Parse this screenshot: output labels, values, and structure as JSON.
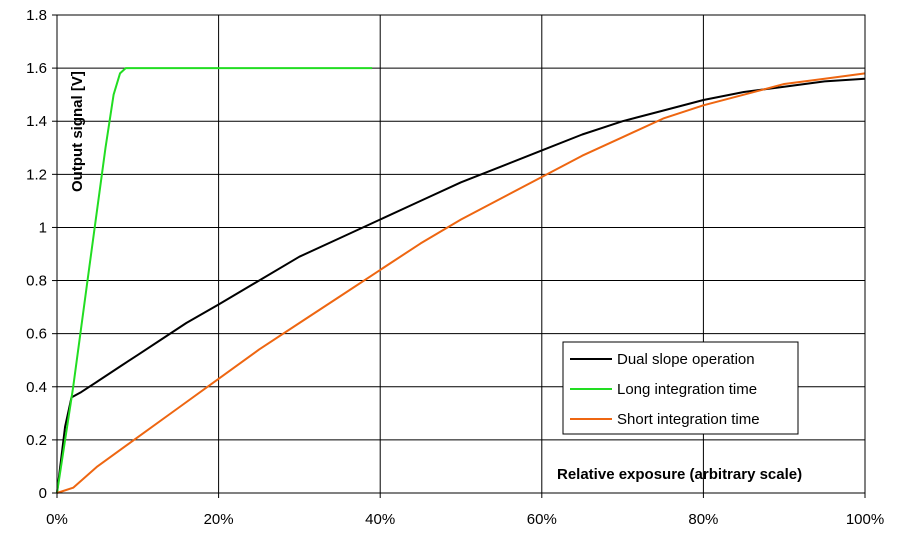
{
  "chart_data": {
    "type": "line",
    "title": "",
    "xlabel": "Relative exposure (arbitrary scale)",
    "ylabel": "Output  signal [V]",
    "xlim": [
      0,
      100
    ],
    "ylim": [
      0,
      1.8
    ],
    "x_ticks": [
      "0%",
      "20%",
      "40%",
      "60%",
      "80%",
      "100%"
    ],
    "y_ticks": [
      "0",
      "0.2",
      "0.4",
      "0.6",
      "0.8",
      "1",
      "1.2",
      "1.4",
      "1.6",
      "1.8"
    ],
    "grid": true,
    "legend_position": "lower-right",
    "series": [
      {
        "name": "Dual slope operation",
        "color": "#000000",
        "points": [
          [
            0,
            0
          ],
          [
            1,
            0.25
          ],
          [
            1.8,
            0.36
          ],
          [
            3,
            0.38
          ],
          [
            5,
            0.42
          ],
          [
            8,
            0.48
          ],
          [
            10,
            0.52
          ],
          [
            13,
            0.58
          ],
          [
            16,
            0.64
          ],
          [
            20,
            0.71
          ],
          [
            25,
            0.8
          ],
          [
            30,
            0.89
          ],
          [
            35,
            0.96
          ],
          [
            40,
            1.03
          ],
          [
            45,
            1.1
          ],
          [
            50,
            1.17
          ],
          [
            55,
            1.23
          ],
          [
            60,
            1.29
          ],
          [
            65,
            1.35
          ],
          [
            70,
            1.4
          ],
          [
            75,
            1.44
          ],
          [
            80,
            1.48
          ],
          [
            85,
            1.51
          ],
          [
            90,
            1.53
          ],
          [
            95,
            1.55
          ],
          [
            100,
            1.56
          ]
        ]
      },
      {
        "name": "Long integration time",
        "color": "#22dd22",
        "points": [
          [
            0,
            0
          ],
          [
            2,
            0.4
          ],
          [
            4,
            0.85
          ],
          [
            6,
            1.3
          ],
          [
            7,
            1.5
          ],
          [
            7.8,
            1.58
          ],
          [
            8.5,
            1.6
          ],
          [
            20,
            1.6
          ],
          [
            39,
            1.6
          ]
        ]
      },
      {
        "name": "Short integration time",
        "color": "#ee6611",
        "points": [
          [
            0,
            0
          ],
          [
            2,
            0.02
          ],
          [
            5,
            0.1
          ],
          [
            10,
            0.21
          ],
          [
            15,
            0.32
          ],
          [
            20,
            0.43
          ],
          [
            25,
            0.54
          ],
          [
            30,
            0.64
          ],
          [
            35,
            0.74
          ],
          [
            40,
            0.84
          ],
          [
            45,
            0.94
          ],
          [
            50,
            1.03
          ],
          [
            55,
            1.11
          ],
          [
            60,
            1.19
          ],
          [
            65,
            1.27
          ],
          [
            70,
            1.34
          ],
          [
            75,
            1.41
          ],
          [
            80,
            1.46
          ],
          [
            85,
            1.5
          ],
          [
            90,
            1.54
          ],
          [
            95,
            1.56
          ],
          [
            100,
            1.58
          ]
        ]
      }
    ]
  }
}
